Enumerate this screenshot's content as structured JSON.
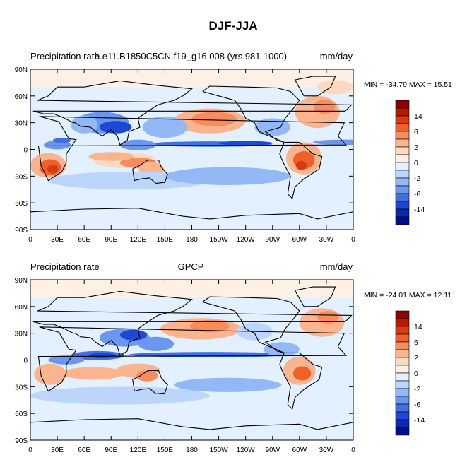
{
  "title": "DJF-JJA",
  "panels": [
    {
      "left_label": "Precipitation rate",
      "center_label": "b.e11.B1850C5CN.f19_g16.008 (yrs 981-1000)",
      "right_label": "mm/day",
      "stats": "MIN = -34.79 MAX =  15.51"
    },
    {
      "left_label": "Precipitation rate",
      "center_label": "GPCP",
      "right_label": "mm/day",
      "stats": "MIN = -24.01 MAX =  12.11"
    }
  ],
  "lat_ticks": [
    "90N",
    "60N",
    "30N",
    "0",
    "30S",
    "60S",
    "90S"
  ],
  "lon_ticks": [
    "0",
    "30E",
    "60E",
    "90E",
    "120E",
    "150E",
    "180",
    "150W",
    "120W",
    "90W",
    "60W",
    "30W",
    "0"
  ],
  "colorbar": {
    "labels": [
      "14",
      "6",
      "2",
      "0",
      "-2",
      "-6",
      "-14"
    ],
    "colors": [
      "#8c0000",
      "#b51a00",
      "#d93a0e",
      "#f0602a",
      "#f88c5c",
      "#fbb58e",
      "#fdd9c2",
      "#fff0e6",
      "#e3f0ff",
      "#bcd6fb",
      "#92b8f5",
      "#6b97ef",
      "#4070e6",
      "#1d48d6",
      "#0a28b8",
      "#000e8a"
    ]
  }
}
